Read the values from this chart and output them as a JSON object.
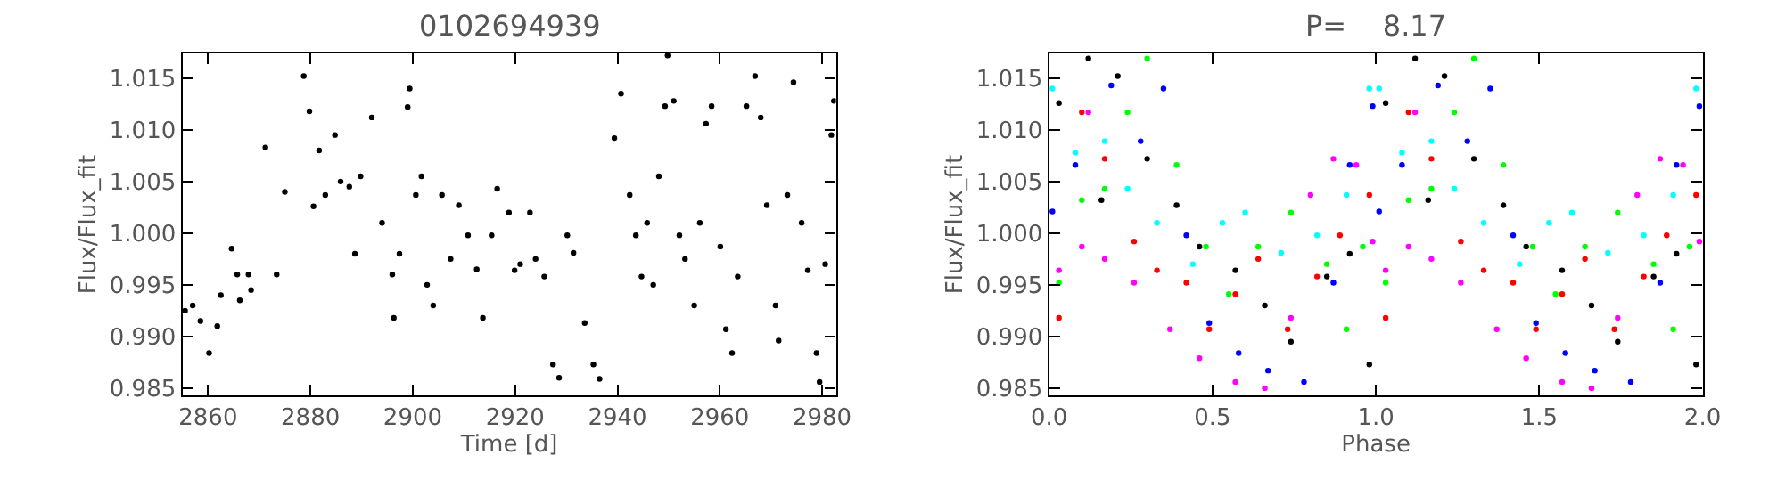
{
  "chart_data": [
    {
      "type": "scatter",
      "title": "0102694939",
      "xlabel": "Time [d]",
      "ylabel": "Flux/Flux_fit",
      "color": "#000000",
      "marker": "circle",
      "x": [
        2855.5,
        2857,
        2858.5,
        2860.2,
        2861.8,
        2862.5,
        2864.6,
        2865.7,
        2866.2,
        2867.9,
        2868.4,
        2871.2,
        2873.4,
        2875,
        2878.7,
        2879.8,
        2880.6,
        2881.7,
        2882.9,
        2884.8,
        2885.9,
        2887.6,
        2888.7,
        2889.8,
        2892,
        2894,
        2896,
        2896.3,
        2897.4,
        2899,
        2899.4,
        2900.6,
        2901.7,
        2902.8,
        2904,
        2905.7,
        2907.4,
        2909,
        2910.8,
        2912.5,
        2913.7,
        2915.4,
        2916.5,
        2918.8,
        2919.9,
        2921,
        2922.9,
        2924,
        2925.7,
        2927.4,
        2928.6,
        2930.2,
        2931.4,
        2933.6,
        2935.3,
        2936.5,
        2939.4,
        2940.7,
        2942.4,
        2943.6,
        2944.7,
        2945.8,
        2947,
        2948.1,
        2949.3,
        2949.8,
        2951,
        2952.1,
        2953.2,
        2955,
        2956.1,
        2957.3,
        2958.4,
        2960.1,
        2961.2,
        2962.4,
        2963.5,
        2965.2,
        2966.9,
        2968,
        2969.2,
        2970.9,
        2971.5,
        2973.2,
        2974.4,
        2976,
        2977.2,
        2978.9,
        2979.5,
        2980.6,
        2981.8,
        2982.3
      ],
      "values": [
        0.9925,
        0.993,
        0.9915,
        0.9884,
        0.991,
        0.994,
        0.9985,
        0.996,
        0.9935,
        0.996,
        0.9945,
        1.0083,
        0.996,
        1.004,
        1.0152,
        1.0118,
        1.0026,
        1.008,
        1.0037,
        1.0095,
        1.005,
        1.0045,
        0.998,
        1.0055,
        1.0112,
        1.001,
        0.996,
        0.9918,
        0.998,
        1.0122,
        1.014,
        1.0037,
        1.0055,
        0.995,
        0.993,
        1.0037,
        0.9975,
        1.0027,
        0.9998,
        0.9965,
        0.9918,
        0.9998,
        1.0043,
        1.002,
        0.9964,
        0.997,
        1.002,
        0.9975,
        0.9958,
        0.9873,
        0.986,
        0.9998,
        0.9981,
        0.9913,
        0.9873,
        0.9859,
        1.0092,
        1.0135,
        1.0037,
        0.9998,
        0.9958,
        1.001,
        0.995,
        1.0055,
        1.0123,
        1.0172,
        1.0128,
        0.9998,
        0.9975,
        0.993,
        1.001,
        1.0106,
        1.0123,
        0.9987,
        0.9907,
        0.9884,
        0.9958,
        1.0123,
        1.0152,
        1.0112,
        1.0027,
        0.993,
        0.9896,
        1.0037,
        1.0146,
        1.001,
        0.9964,
        0.9884,
        0.9856,
        0.997,
        1.0095,
        1.0128
      ],
      "xlim": [
        2855,
        2982.7
      ],
      "ylim": [
        0.9843,
        1.0174
      ],
      "xticks": [
        2860,
        2880,
        2900,
        2920,
        2940,
        2960,
        2980
      ],
      "yticks": [
        0.985,
        {
          "value": 0.99,
          "label": "0.990"
        },
        0.995,
        {
          "value": 1.0,
          "label": "1.000"
        },
        1.005,
        {
          "value": 1.01,
          "label": "1.010"
        },
        1.015
      ]
    },
    {
      "type": "scatter",
      "title": "P=    8.17",
      "xlabel": "Phase",
      "ylabel": "Flux/Flux_fit",
      "marker": "circle",
      "series": [
        {
          "color": "#000000",
          "x": [
            0.03,
            0.12,
            0.16,
            0.21,
            0.3,
            0.39,
            0.46,
            0.57,
            0.66,
            0.74,
            0.85,
            0.92,
            0.98,
            1.03,
            1.12,
            1.16,
            1.21,
            1.3,
            1.39,
            1.46,
            1.57,
            1.66,
            1.74,
            1.85,
            1.92,
            1.98
          ],
          "values": [
            1.0126,
            1.0169,
            1.0032,
            1.0152,
            1.0072,
            1.0027,
            0.9987,
            0.9964,
            0.993,
            0.9895,
            0.9958,
            0.998,
            0.9873,
            1.0126,
            1.0169,
            1.0032,
            1.0152,
            1.0072,
            1.0027,
            0.9987,
            0.9964,
            0.993,
            0.9895,
            0.9958,
            0.998,
            0.9873
          ]
        },
        {
          "color": "#ff0000",
          "x": [
            0.03,
            0.1,
            0.17,
            0.26,
            0.33,
            0.42,
            0.49,
            0.57,
            0.64,
            0.73,
            0.82,
            0.89,
            0.98,
            1.03,
            1.1,
            1.17,
            1.26,
            1.33,
            1.42,
            1.49,
            1.57,
            1.64,
            1.73,
            1.82,
            1.89,
            1.98
          ],
          "values": [
            0.9918,
            1.0117,
            1.0072,
            0.9992,
            0.9964,
            0.9952,
            0.9907,
            0.9941,
            0.9975,
            0.9907,
            0.9958,
            0.9998,
            1.0037,
            0.9918,
            1.0117,
            1.0072,
            0.9992,
            0.9964,
            0.9952,
            0.9907,
            0.9941,
            0.9975,
            0.9907,
            0.9958,
            0.9998,
            1.0037
          ]
        },
        {
          "color": "#0000ff",
          "x": [
            0.01,
            0.08,
            0.19,
            0.28,
            0.35,
            0.42,
            0.49,
            0.58,
            0.67,
            0.78,
            0.87,
            0.92,
            0.99,
            1.01,
            1.08,
            1.19,
            1.28,
            1.35,
            1.42,
            1.49,
            1.58,
            1.67,
            1.78,
            1.87,
            1.92,
            1.99
          ],
          "values": [
            1.0021,
            1.0066,
            1.0143,
            1.0089,
            1.014,
            0.9998,
            0.9913,
            0.9884,
            0.9867,
            0.9856,
            0.9952,
            1.0066,
            1.0123,
            1.0021,
            1.0066,
            1.0143,
            1.0089,
            1.014,
            0.9998,
            0.9913,
            0.9884,
            0.9867,
            0.9856,
            0.9952,
            1.0066,
            1.0123
          ]
        },
        {
          "color": "#ff00ff",
          "x": [
            0.03,
            0.1,
            0.12,
            0.17,
            0.26,
            0.37,
            0.46,
            0.57,
            0.66,
            0.74,
            0.8,
            0.87,
            0.94,
            0.99,
            1.03,
            1.1,
            1.12,
            1.17,
            1.26,
            1.37,
            1.46,
            1.57,
            1.66,
            1.74,
            1.8,
            1.87,
            1.94,
            1.99
          ],
          "values": [
            0.9964,
            0.9987,
            1.0117,
            0.9975,
            0.9952,
            0.9907,
            0.9879,
            0.9856,
            0.985,
            0.9918,
            1.0037,
            1.0072,
            1.0066,
            0.9992,
            0.9964,
            0.9987,
            1.0117,
            0.9975,
            0.9952,
            0.9907,
            0.9879,
            0.9856,
            0.985,
            0.9918,
            1.0037,
            1.0072,
            1.0066,
            0.9992
          ]
        },
        {
          "color": "#00ffff",
          "x": [
            0.01,
            0.08,
            0.17,
            0.24,
            0.33,
            0.44,
            0.53,
            0.6,
            0.71,
            0.82,
            0.91,
            0.98,
            1.01,
            1.08,
            1.17,
            1.24,
            1.33,
            1.44,
            1.53,
            1.6,
            1.71,
            1.82,
            1.91,
            1.98
          ],
          "values": [
            1.014,
            1.0078,
            1.0089,
            1.0043,
            1.001,
            0.997,
            1.001,
            1.002,
            0.9981,
            0.9998,
            1.0037,
            1.014,
            1.014,
            1.0078,
            1.0089,
            1.0043,
            1.001,
            0.997,
            1.001,
            1.002,
            0.9981,
            0.9998,
            1.0037,
            1.014
          ]
        },
        {
          "color": "#00ff00",
          "x": [
            0.03,
            0.1,
            0.17,
            0.24,
            0.3,
            0.39,
            0.48,
            0.55,
            0.64,
            0.74,
            0.85,
            0.91,
            0.96,
            1.03,
            1.1,
            1.17,
            1.24,
            1.3,
            1.39,
            1.48,
            1.55,
            1.64,
            1.74,
            1.85,
            1.91,
            1.96
          ],
          "values": [
            0.9952,
            1.0032,
            1.0043,
            1.0117,
            1.0169,
            1.0066,
            0.9987,
            0.9941,
            0.9987,
            1.002,
            0.997,
            0.9907,
            0.9987,
            0.9952,
            1.0032,
            1.0043,
            1.0117,
            1.0169,
            1.0066,
            0.9987,
            0.9941,
            0.9987,
            1.002,
            0.997,
            0.9907,
            0.9987
          ]
        }
      ],
      "xlim": [
        0,
        2
      ],
      "ylim": [
        0.9843,
        1.0174
      ],
      "xticks": [
        {
          "value": 0,
          "label": "0.0"
        },
        0.5,
        {
          "value": 1,
          "label": "1.0"
        },
        1.5,
        {
          "value": 2,
          "label": "2.0"
        }
      ],
      "yticks": [
        0.985,
        {
          "value": 0.99,
          "label": "0.990"
        },
        0.995,
        {
          "value": 1.0,
          "label": "1.000"
        },
        1.005,
        {
          "value": 1.01,
          "label": "1.010"
        },
        1.015
      ]
    }
  ]
}
